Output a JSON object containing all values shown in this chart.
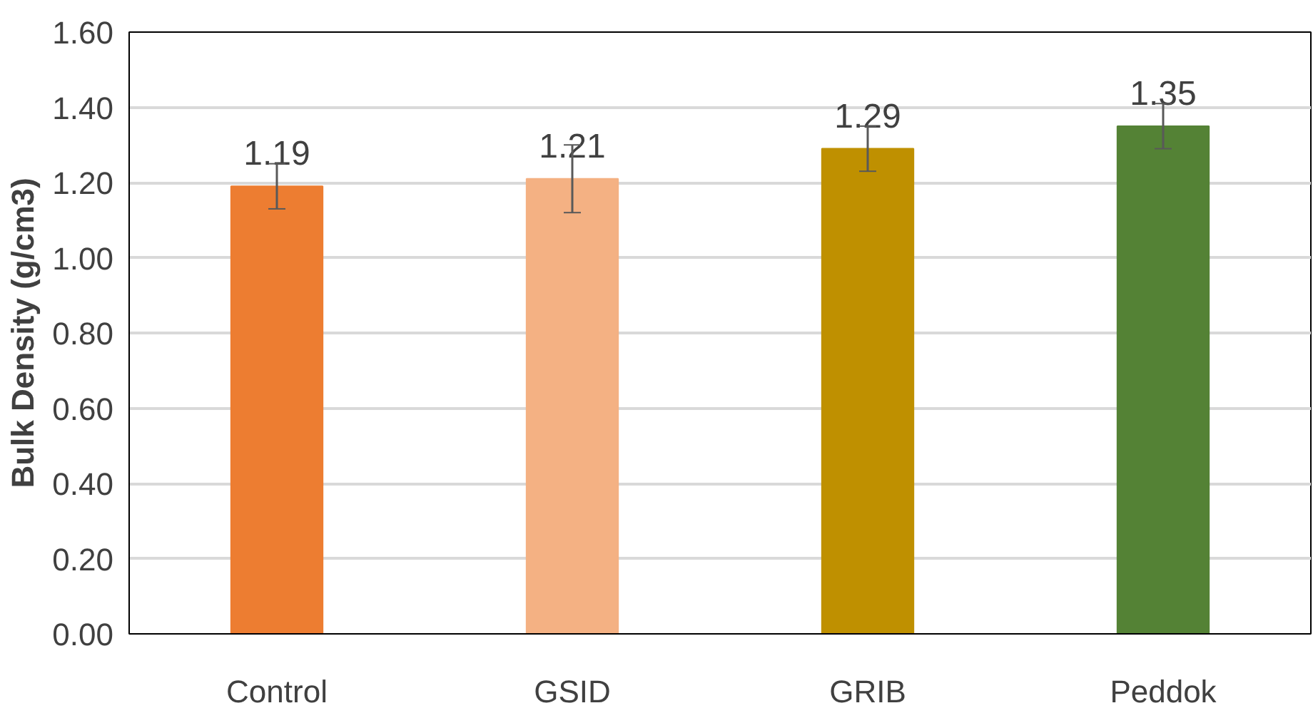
{
  "chart_data": {
    "type": "bar",
    "ylabel": "Bulk Density (g/cm3)",
    "categories": [
      "Control",
      "GSID",
      "GRIB",
      "Peddok"
    ],
    "values": [
      1.19,
      1.21,
      1.29,
      1.35
    ],
    "colors": [
      "#ed7d31",
      "#f4b183",
      "#bf9000",
      "#548235"
    ],
    "errors": [
      0.06,
      0.09,
      0.06,
      0.06
    ],
    "data_labels": true,
    "ylim": [
      0,
      1.6
    ],
    "yticks": [
      {
        "value": 0,
        "label": "0.00"
      },
      {
        "value": 0.2,
        "label": "0.20"
      },
      {
        "value": 0.4,
        "label": "0.40"
      },
      {
        "value": 0.6,
        "label": "0.60"
      },
      {
        "value": 0.8,
        "label": "0.80"
      },
      {
        "value": 1.0,
        "label": "1.00"
      },
      {
        "value": 1.2,
        "label": "1.20"
      },
      {
        "value": 1.4,
        "label": "1.40"
      },
      {
        "value": 1.6,
        "label": "1.60"
      }
    ],
    "grid": "y"
  }
}
